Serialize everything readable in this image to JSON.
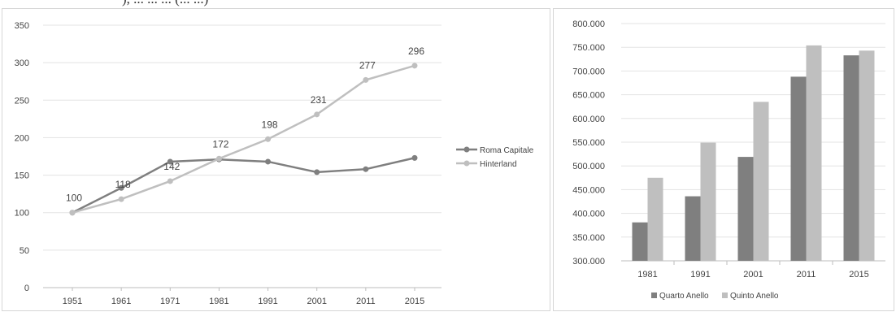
{
  "caption": "), ... ... ... (... ...)",
  "chart_data": [
    {
      "type": "line",
      "categories": [
        "1951",
        "1961",
        "1971",
        "1981",
        "1991",
        "2001",
        "2011",
        "2015"
      ],
      "ylim": [
        0,
        350
      ],
      "yticks": [
        "0",
        "50",
        "100",
        "150",
        "200",
        "250",
        "300",
        "350"
      ],
      "grid": true,
      "legend": "right",
      "series": [
        {
          "name": "Roma Capitale",
          "color": "#7f7f7f",
          "values": [
            100,
            133,
            168,
            171,
            168,
            154,
            158,
            173
          ]
        },
        {
          "name": "Hinterland",
          "color": "#bfbfbf",
          "values": [
            100,
            118,
            142,
            172,
            198,
            231,
            277,
            296
          ]
        }
      ],
      "data_labels": [
        "100",
        "118",
        "142",
        "172",
        "198",
        "231",
        "277",
        "296"
      ]
    },
    {
      "type": "bar",
      "categories": [
        "1981",
        "1991",
        "2001",
        "2011",
        "2015"
      ],
      "ylim": [
        300000,
        800000
      ],
      "yticks": [
        "300.000",
        "350.000",
        "400.000",
        "450.000",
        "500.000",
        "550.000",
        "600.000",
        "650.000",
        "700.000",
        "750.000",
        "800.000"
      ],
      "grid": true,
      "legend": "bottom",
      "series": [
        {
          "name": "Quarto Anello",
          "color": "#7f7f7f",
          "values": [
            381000,
            436000,
            519000,
            688000,
            733000
          ]
        },
        {
          "name": "Quinto Anello",
          "color": "#bfbfbf",
          "values": [
            475000,
            549000,
            635000,
            754000,
            743000
          ]
        }
      ]
    }
  ]
}
